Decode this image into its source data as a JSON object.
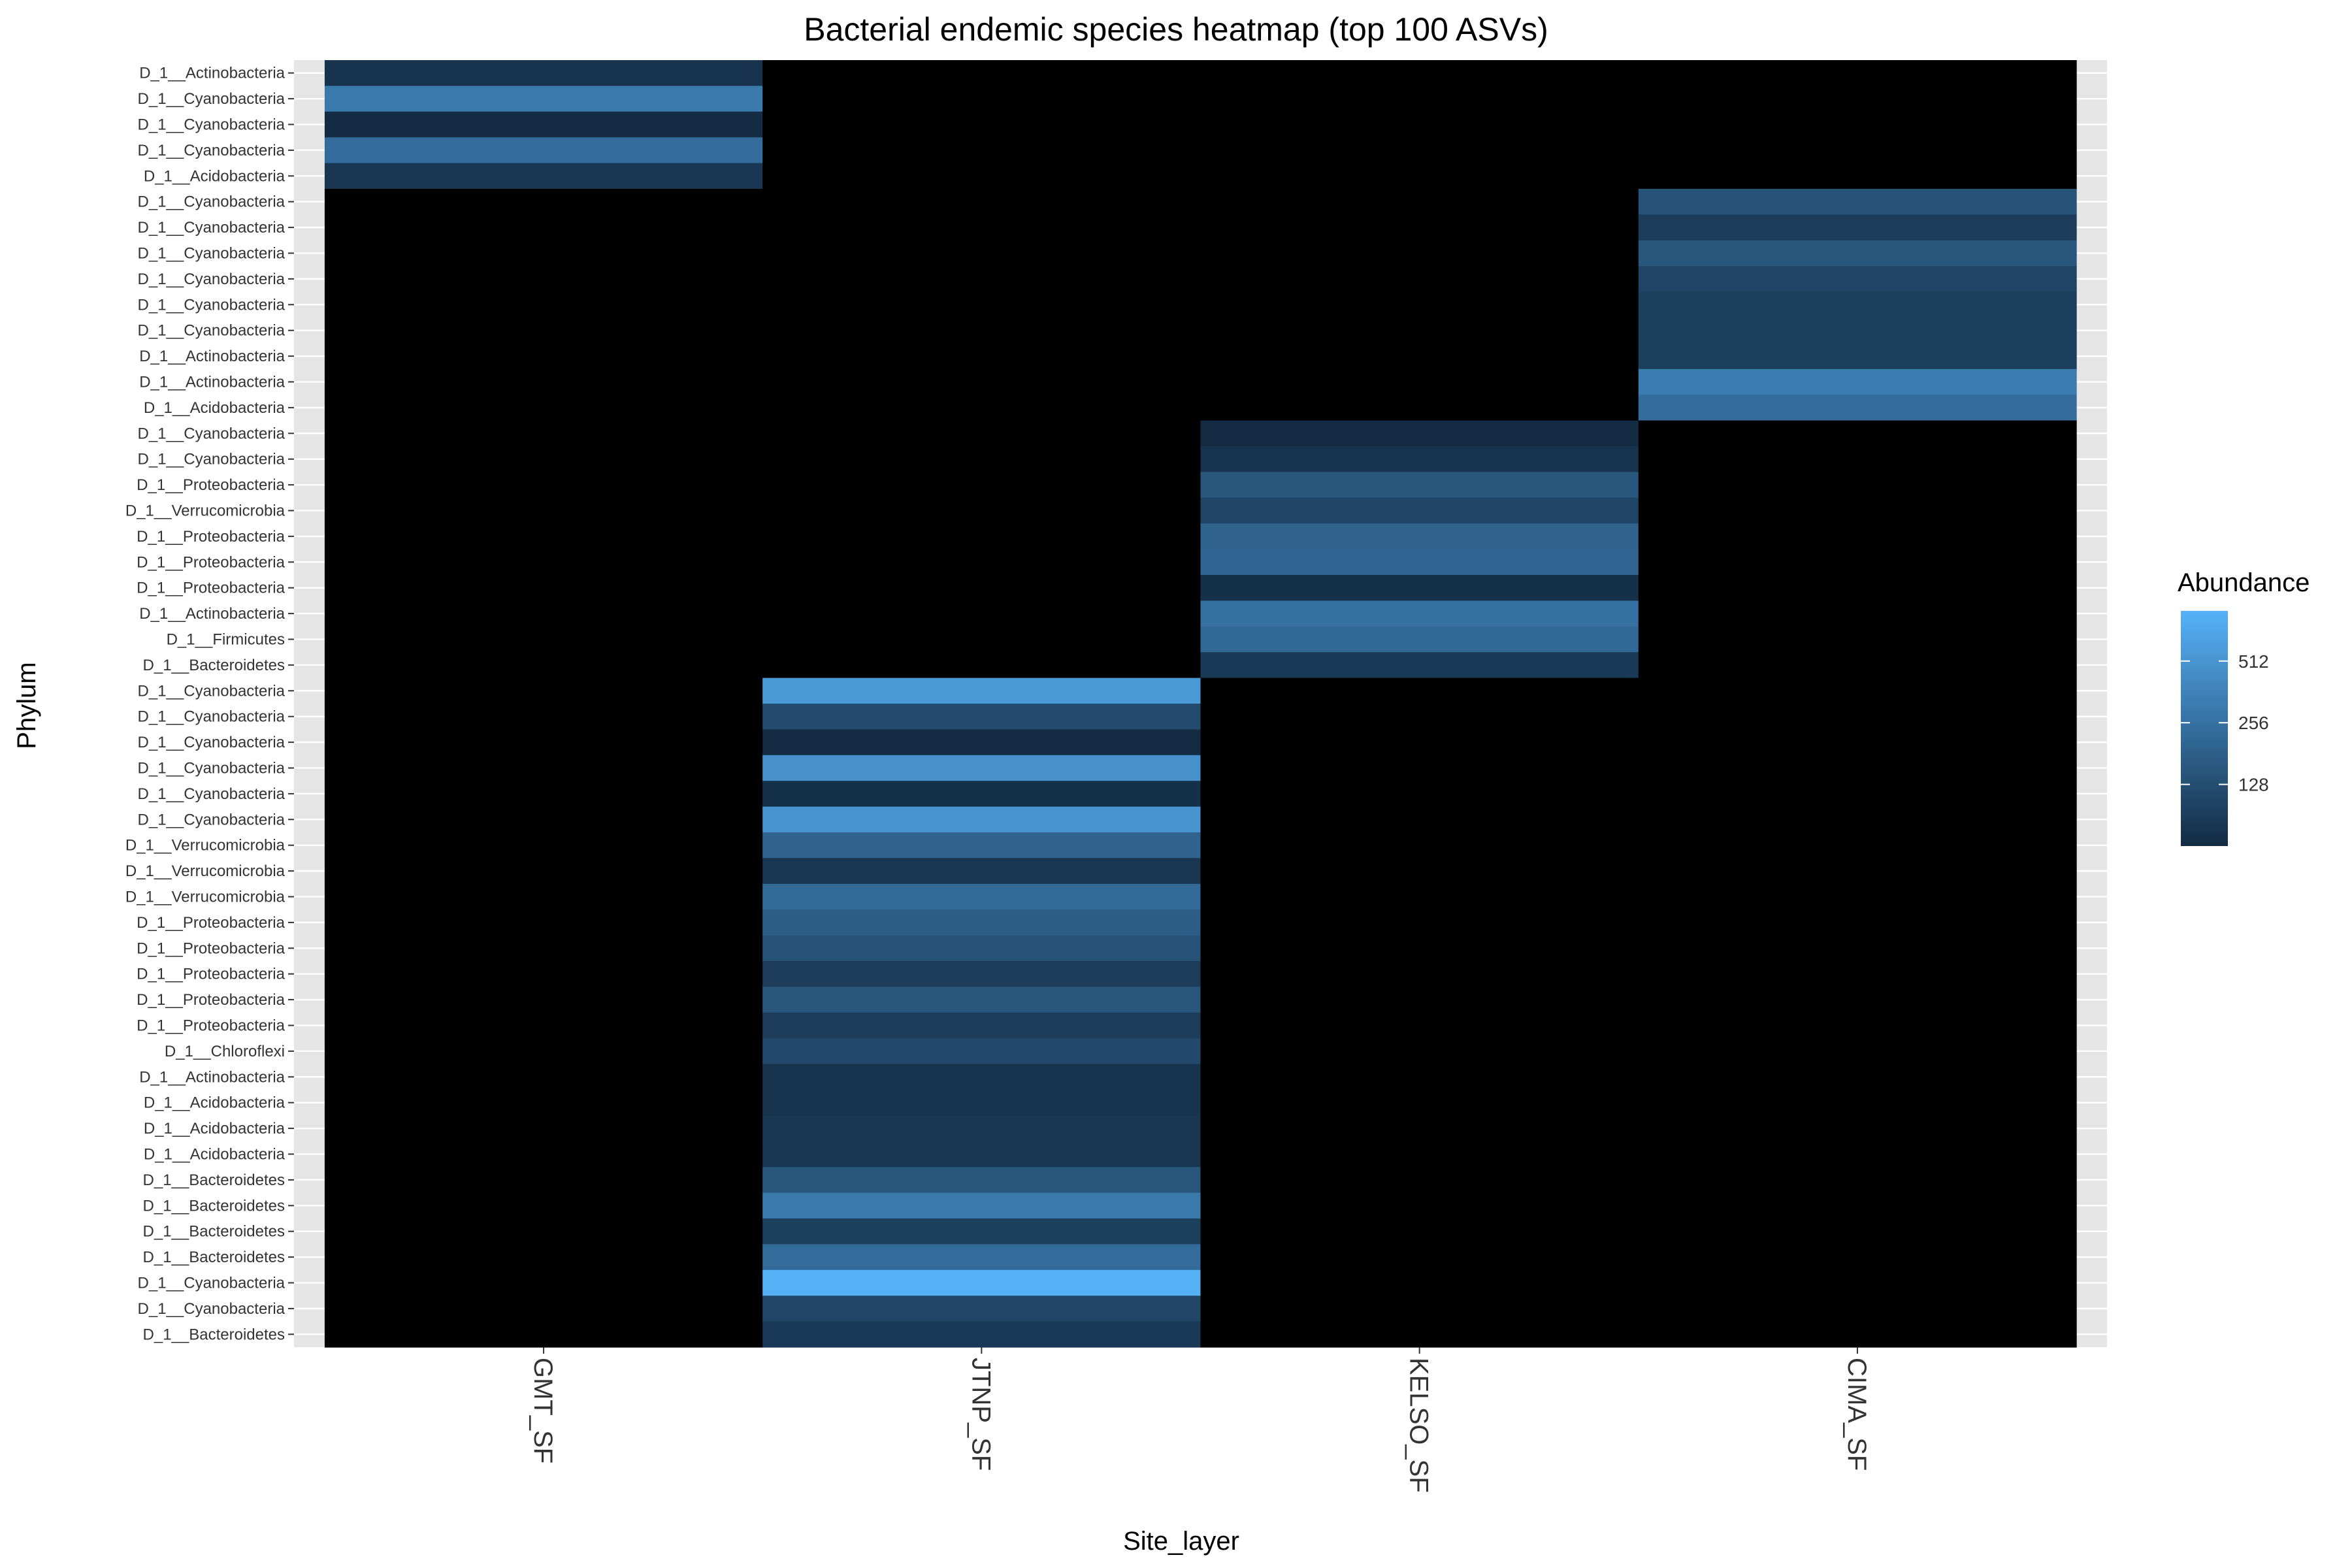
{
  "chart_data": {
    "type": "heatmap",
    "title": "Bacterial endemic species heatmap (top 100 ASVs)",
    "xlabel": "Site_layer",
    "ylabel": "Phylum",
    "x_categories": [
      "GMT_SF",
      "JTNP_SF",
      "KELSO_SF",
      "CIMA_SF"
    ],
    "y_categories": [
      "D_1__Actinobacteria",
      "D_1__Cyanobacteria",
      "D_1__Cyanobacteria",
      "D_1__Cyanobacteria",
      "D_1__Acidobacteria",
      "D_1__Cyanobacteria",
      "D_1__Cyanobacteria",
      "D_1__Cyanobacteria",
      "D_1__Cyanobacteria",
      "D_1__Cyanobacteria",
      "D_1__Cyanobacteria",
      "D_1__Actinobacteria",
      "D_1__Actinobacteria",
      "D_1__Acidobacteria",
      "D_1__Cyanobacteria",
      "D_1__Cyanobacteria",
      "D_1__Proteobacteria",
      "D_1__Verrucomicrobia",
      "D_1__Proteobacteria",
      "D_1__Proteobacteria",
      "D_1__Proteobacteria",
      "D_1__Actinobacteria",
      "D_1__Firmicutes",
      "D_1__Bacteroidetes",
      "D_1__Cyanobacteria",
      "D_1__Cyanobacteria",
      "D_1__Cyanobacteria",
      "D_1__Cyanobacteria",
      "D_1__Cyanobacteria",
      "D_1__Cyanobacteria",
      "D_1__Verrucomicrobia",
      "D_1__Verrucomicrobia",
      "D_1__Verrucomicrobia",
      "D_1__Proteobacteria",
      "D_1__Proteobacteria",
      "D_1__Proteobacteria",
      "D_1__Proteobacteria",
      "D_1__Proteobacteria",
      "D_1__Chloroflexi",
      "D_1__Actinobacteria",
      "D_1__Acidobacteria",
      "D_1__Acidobacteria",
      "D_1__Acidobacteria",
      "D_1__Bacteroidetes",
      "D_1__Bacteroidetes",
      "D_1__Bacteroidetes",
      "D_1__Bacteroidetes",
      "D_1__Cyanobacteria",
      "D_1__Cyanobacteria",
      "D_1__Bacteroidetes"
    ],
    "cells": [
      {
        "x": "GMT_SF",
        "row": 0,
        "value": 75
      },
      {
        "x": "GMT_SF",
        "row": 1,
        "value": 300
      },
      {
        "x": "GMT_SF",
        "row": 2,
        "value": 50
      },
      {
        "x": "GMT_SF",
        "row": 3,
        "value": 230
      },
      {
        "x": "GMT_SF",
        "row": 4,
        "value": 80
      },
      {
        "x": "GMT_SF",
        "row": 5,
        "value": 0
      },
      {
        "x": "CIMA_SF",
        "row": 5,
        "value": 140
      },
      {
        "x": "CIMA_SF",
        "row": 6,
        "value": 90
      },
      {
        "x": "CIMA_SF",
        "row": 7,
        "value": 150
      },
      {
        "x": "CIMA_SF",
        "row": 8,
        "value": 105
      },
      {
        "x": "CIMA_SF",
        "row": 9,
        "value": 95
      },
      {
        "x": "CIMA_SF",
        "row": 10,
        "value": 95
      },
      {
        "x": "CIMA_SF",
        "row": 11,
        "value": 95
      },
      {
        "x": "CIMA_SF",
        "row": 12,
        "value": 320
      },
      {
        "x": "CIMA_SF",
        "row": 13,
        "value": 235
      },
      {
        "x": "KELSO_SF",
        "row": 14,
        "value": 60
      },
      {
        "x": "KELSO_SF",
        "row": 15,
        "value": 75
      },
      {
        "x": "KELSO_SF",
        "row": 16,
        "value": 150
      },
      {
        "x": "KELSO_SF",
        "row": 17,
        "value": 105
      },
      {
        "x": "KELSO_SF",
        "row": 18,
        "value": 190
      },
      {
        "x": "KELSO_SF",
        "row": 19,
        "value": 200
      },
      {
        "x": "KELSO_SF",
        "row": 20,
        "value": 70
      },
      {
        "x": "KELSO_SF",
        "row": 21,
        "value": 250
      },
      {
        "x": "KELSO_SF",
        "row": 22,
        "value": 215
      },
      {
        "x": "KELSO_SF",
        "row": 23,
        "value": 85
      },
      {
        "x": "JTNP_SF",
        "row": 24,
        "value": 560
      },
      {
        "x": "JTNP_SF",
        "row": 25,
        "value": 120
      },
      {
        "x": "JTNP_SF",
        "row": 26,
        "value": 60
      },
      {
        "x": "JTNP_SF",
        "row": 27,
        "value": 480
      },
      {
        "x": "JTNP_SF",
        "row": 28,
        "value": 70
      },
      {
        "x": "JTNP_SF",
        "row": 29,
        "value": 510
      },
      {
        "x": "JTNP_SF",
        "row": 30,
        "value": 190
      },
      {
        "x": "JTNP_SF",
        "row": 31,
        "value": 80
      },
      {
        "x": "JTNP_SF",
        "row": 32,
        "value": 220
      },
      {
        "x": "JTNP_SF",
        "row": 33,
        "value": 170
      },
      {
        "x": "JTNP_SF",
        "row": 34,
        "value": 140
      },
      {
        "x": "JTNP_SF",
        "row": 35,
        "value": 90
      },
      {
        "x": "JTNP_SF",
        "row": 36,
        "value": 150
      },
      {
        "x": "JTNP_SF",
        "row": 37,
        "value": 90
      },
      {
        "x": "JTNP_SF",
        "row": 38,
        "value": 115
      },
      {
        "x": "JTNP_SF",
        "row": 39,
        "value": 75
      },
      {
        "x": "JTNP_SF",
        "row": 40,
        "value": 75
      },
      {
        "x": "JTNP_SF",
        "row": 41,
        "value": 80
      },
      {
        "x": "JTNP_SF",
        "row": 42,
        "value": 80
      },
      {
        "x": "JTNP_SF",
        "row": 43,
        "value": 150
      },
      {
        "x": "JTNP_SF",
        "row": 44,
        "value": 300
      },
      {
        "x": "JTNP_SF",
        "row": 45,
        "value": 95
      },
      {
        "x": "JTNP_SF",
        "row": 46,
        "value": 230
      },
      {
        "x": "JTNP_SF",
        "row": 47,
        "value": 880
      },
      {
        "x": "JTNP_SF",
        "row": 48,
        "value": 110
      },
      {
        "x": "JTNP_SF",
        "row": 49,
        "value": 85
      }
    ],
    "zero_color": "#000000",
    "color_scale": {
      "type": "log2",
      "low_value": 64,
      "high_value": 900,
      "low_color": "#132B43",
      "high_color": "#56B1F7"
    },
    "legend": {
      "title": "Abundance",
      "ticks": [
        128,
        256,
        512
      ],
      "placement": "right"
    },
    "panel_background": "#E5E5E5",
    "grid": true
  }
}
